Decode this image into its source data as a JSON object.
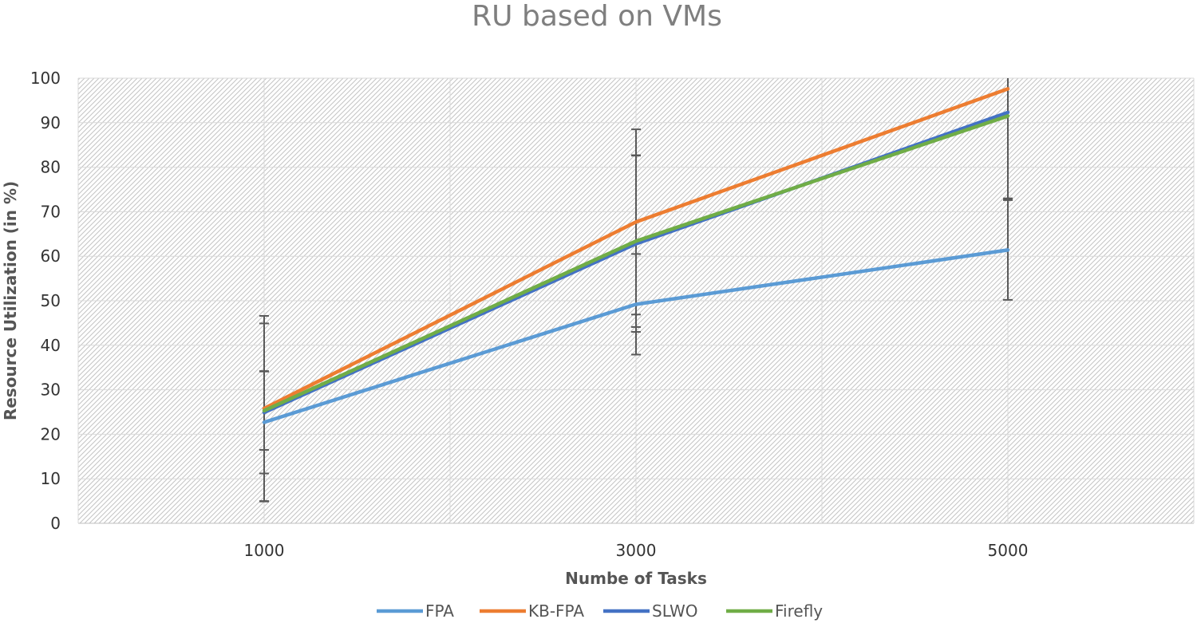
{
  "chart_data": {
    "type": "line",
    "title": "RU based on VMs",
    "xlabel": "Numbe of Tasks",
    "ylabel": "Resource Utilization (in %)",
    "categories": [
      "1000",
      "3000",
      "5000"
    ],
    "ylim": [
      0,
      100
    ],
    "yticks": [
      0,
      10,
      20,
      30,
      40,
      50,
      60,
      70,
      80,
      90,
      100
    ],
    "grid": true,
    "legend_position": "bottom",
    "series": [
      {
        "name": "FPA",
        "color": "#5B9BD5",
        "values": [
          22.7,
          49.2,
          61.4
        ],
        "error": [
          11.5,
          11.3,
          11.2
        ]
      },
      {
        "name": "KB-FPA",
        "color": "#ED7D31",
        "values": [
          25.8,
          67.7,
          97.6
        ],
        "error": [
          20.8,
          20.8,
          24.6
        ]
      },
      {
        "name": "SLWO",
        "color": "#4472C4",
        "values": [
          24.9,
          62.8,
          92.3
        ],
        "error": [
          20.0,
          19.8,
          19.4
        ]
      },
      {
        "name": "Firefly",
        "color": "#70AD47",
        "values": [
          25.3,
          63.4,
          91.5
        ],
        "error": [
          8.8,
          19.3,
          18.7
        ]
      }
    ]
  }
}
